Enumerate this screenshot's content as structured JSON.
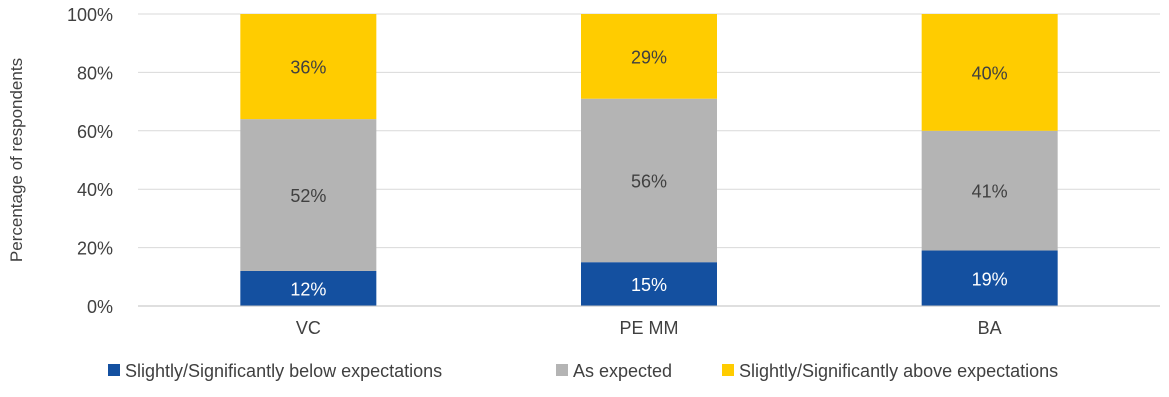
{
  "chart_data": {
    "type": "bar",
    "stacked": true,
    "categories": [
      "VC",
      "PE MM",
      "BA"
    ],
    "series": [
      {
        "name": "Slightly/Significantly below expectations",
        "values": [
          12,
          15,
          19
        ],
        "labels": [
          "12%",
          "15%",
          "19%"
        ],
        "color": "#1450a0",
        "label_color": "#ffffff"
      },
      {
        "name": "As expected",
        "values": [
          52,
          56,
          41
        ],
        "labels": [
          "52%",
          "56%",
          "41%"
        ],
        "color": "#b4b4b4",
        "label_color": "#404040"
      },
      {
        "name": "Slightly/Significantly above expectations",
        "values": [
          36,
          29,
          40
        ],
        "labels": [
          "36%",
          "29%",
          "40%"
        ],
        "color": "#ffcc00",
        "label_color": "#404040"
      }
    ],
    "title": "",
    "xlabel": "",
    "ylabel": "Percentage of respondents",
    "ylim": [
      0,
      100
    ],
    "yticks": [
      {
        "value": 0,
        "label": "0%"
      },
      {
        "value": 20,
        "label": "20%"
      },
      {
        "value": 40,
        "label": "40%"
      },
      {
        "value": 60,
        "label": "60%"
      },
      {
        "value": 80,
        "label": "80%"
      },
      {
        "value": 100,
        "label": "100%"
      }
    ],
    "grid": true,
    "legend_position": "bottom"
  }
}
